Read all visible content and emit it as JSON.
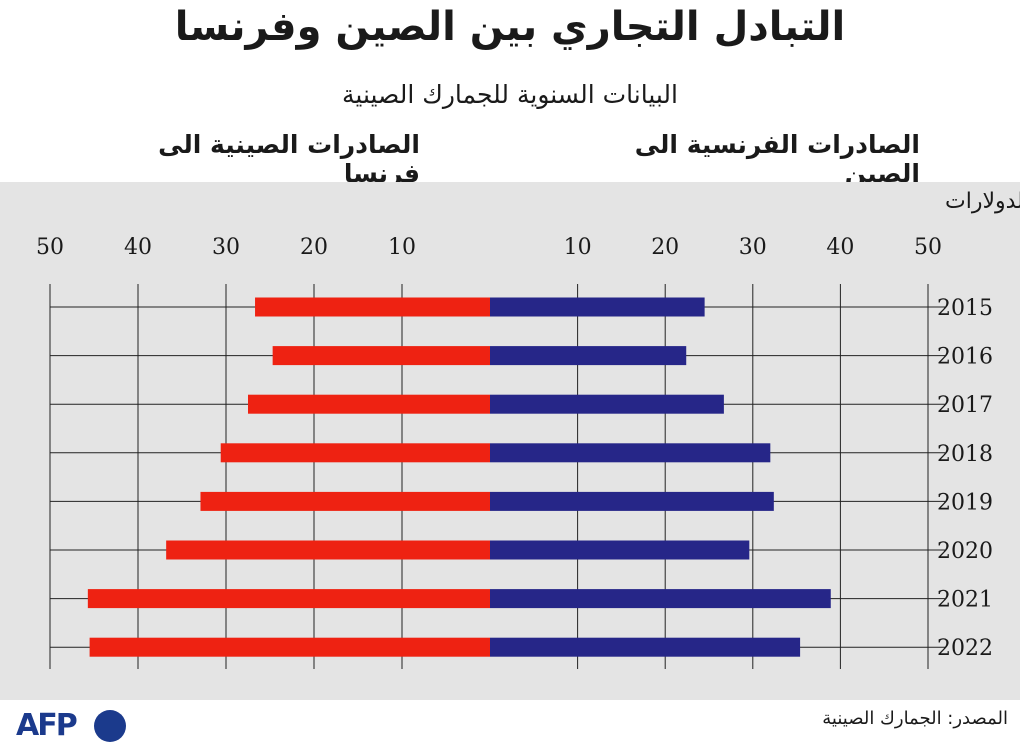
{
  "title": "التبادل التجاري بين الصين وفرنسا",
  "subtitle": "البيانات السنوية للجمارك الصينية",
  "legend_left": "الصادرات الصينية الى فرنسا",
  "legend_right": "الصادرات الفرنسية الى الصين",
  "unit": "بمليارات الدولارات",
  "source": "المصدر: الجمارك الصينية",
  "logo": "AFP",
  "colors": {
    "china_exports": "#ee2212",
    "france_exports": "#262688",
    "panel": "#e4e4e4"
  },
  "chart_data": {
    "type": "bar",
    "orientation": "horizontal-diverging",
    "categories": [
      "2015",
      "2016",
      "2017",
      "2018",
      "2019",
      "2020",
      "2021",
      "2022"
    ],
    "x_ticks": [
      10,
      20,
      30,
      40,
      50
    ],
    "xlim": [
      0,
      50
    ],
    "grid": true,
    "series": [
      {
        "name": "الصادرات الصينية الى فرنسا",
        "side": "left",
        "values": [
          26.7,
          24.7,
          27.5,
          30.6,
          32.9,
          36.8,
          45.7,
          45.5
        ]
      },
      {
        "name": "الصادرات الفرنسية الى الصين",
        "side": "right",
        "values": [
          24.5,
          22.4,
          26.7,
          32.0,
          32.4,
          29.6,
          38.9,
          35.4
        ]
      }
    ]
  }
}
